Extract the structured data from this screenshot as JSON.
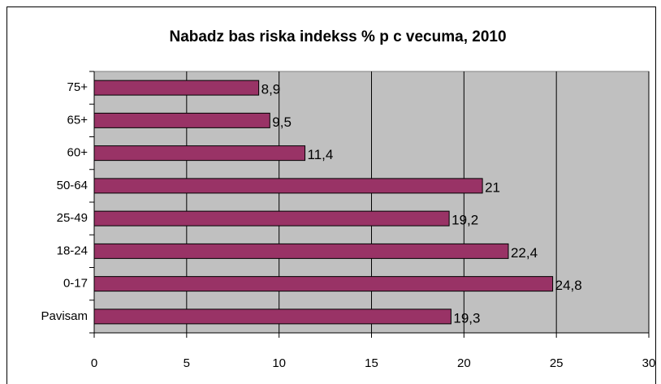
{
  "chart_data": {
    "type": "hbar",
    "title": "Nabadz bas riska indekss % p  c vecuma, 2010",
    "categories": [
      "75+",
      "65+",
      "60+",
      "50-64",
      "25-49",
      "18-24",
      "0-17",
      "Pavisam"
    ],
    "values": [
      8.9,
      9.5,
      11.4,
      21,
      19.2,
      22.4,
      24.8,
      19.3
    ],
    "value_labels": [
      "8,9",
      "9,5",
      "11,4",
      "21",
      "19,2",
      "22,4",
      "24,8",
      "19,3"
    ],
    "color": "#993366",
    "xlim": [
      0,
      30
    ],
    "xticks": [
      0,
      5,
      10,
      15,
      20,
      25,
      30
    ],
    "grid": true
  }
}
